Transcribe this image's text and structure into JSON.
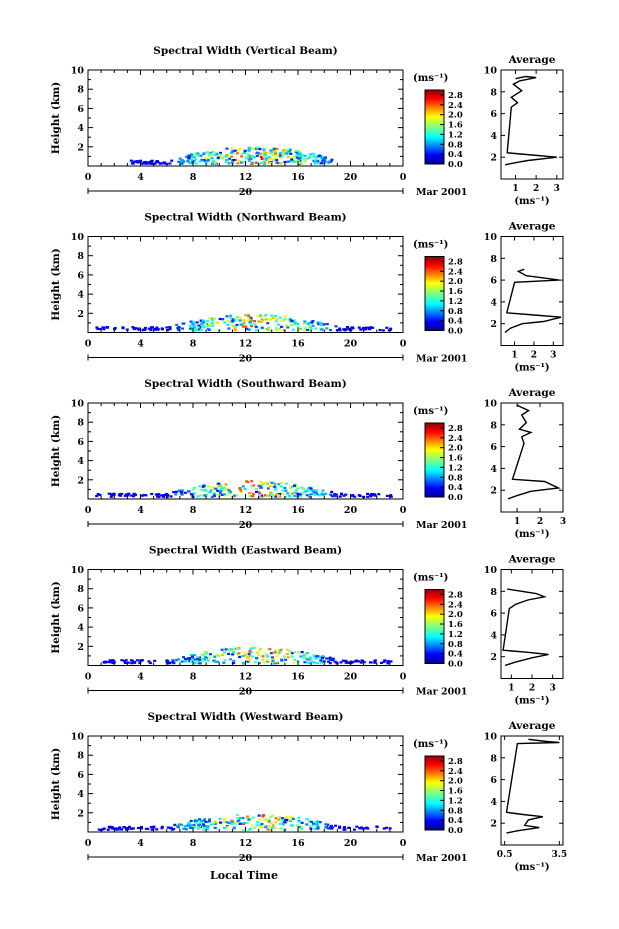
{
  "figure": {
    "y_axis_label": "Height (km)",
    "x_axis_title": "Local Time",
    "date_label": "Mar 2001",
    "day_label": "20",
    "colorbar_unit": "(ms⁻¹)",
    "average_title": "Average",
    "average_unit": "(ms⁻¹)"
  },
  "chart_data": [
    {
      "type": "heatmap",
      "title": "Spectral Width (Vertical Beam)",
      "x_ticks": [
        "0",
        "4",
        "8",
        "12",
        "16",
        "20",
        "0"
      ],
      "y_ticks": [
        "2",
        "4",
        "6",
        "8",
        "10"
      ],
      "xlim": [
        0,
        24
      ],
      "ylim": [
        0,
        10
      ],
      "colorbar": {
        "min": 0.0,
        "max": 3.0,
        "tick_labels": [
          "0.0",
          "0.4",
          "0.8",
          "1.2",
          "1.6",
          "2.0",
          "2.4",
          "2.8"
        ]
      },
      "echo_region": {
        "x_start": 3.0,
        "x_end": 18.5,
        "peak_height_km": 1.4,
        "peak_value": 2.6
      },
      "average": {
        "x_ticks": [
          "1",
          "2",
          "3"
        ],
        "xlim": [
          0.3,
          3.3
        ],
        "y_ticks": [
          "2",
          "4",
          "6",
          "8",
          "10"
        ],
        "profile": [
          [
            1.0,
            9.2
          ],
          [
            1.5,
            9.4
          ],
          [
            2.0,
            9.3
          ],
          [
            1.2,
            9.0
          ],
          [
            0.9,
            8.7
          ],
          [
            1.3,
            8.1
          ],
          [
            0.8,
            7.5
          ],
          [
            1.1,
            7.0
          ],
          [
            0.8,
            6.6
          ],
          [
            0.6,
            2.4
          ],
          [
            1.8,
            2.2
          ],
          [
            3.0,
            2.0
          ],
          [
            1.6,
            1.7
          ],
          [
            1.0,
            1.5
          ],
          [
            0.5,
            1.3
          ]
        ]
      }
    },
    {
      "type": "heatmap",
      "title": "Spectral Width (Northward Beam)",
      "x_ticks": [
        "0",
        "4",
        "8",
        "12",
        "16",
        "20",
        "0"
      ],
      "y_ticks": [
        "2",
        "4",
        "6",
        "8",
        "10"
      ],
      "xlim": [
        0,
        24
      ],
      "ylim": [
        0,
        10
      ],
      "colorbar": {
        "min": 0.0,
        "max": 3.0,
        "tick_labels": [
          "0.0",
          "0.4",
          "0.8",
          "1.2",
          "1.6",
          "2.0",
          "2.4",
          "2.8"
        ]
      },
      "echo_region": {
        "x_start": 0.5,
        "x_end": 23.0,
        "peak_height_km": 1.3,
        "peak_value": 2.5
      },
      "average": {
        "x_ticks": [
          "1",
          "2",
          "3"
        ],
        "xlim": [
          0.3,
          3.5
        ],
        "y_ticks": [
          "2",
          "4",
          "6",
          "8",
          "10"
        ],
        "profile": [
          [
            1.5,
            7.0
          ],
          [
            1.2,
            6.8
          ],
          [
            1.6,
            6.4
          ],
          [
            2.5,
            6.2
          ],
          [
            3.3,
            6.0
          ],
          [
            1.0,
            5.8
          ],
          [
            0.6,
            3.0
          ],
          [
            2.0,
            2.8
          ],
          [
            3.4,
            2.6
          ],
          [
            2.5,
            2.2
          ],
          [
            1.4,
            2.0
          ],
          [
            0.8,
            1.6
          ],
          [
            0.5,
            1.2
          ]
        ]
      }
    },
    {
      "type": "heatmap",
      "title": "Spectral Width (Southward Beam)",
      "x_ticks": [
        "0",
        "4",
        "8",
        "12",
        "16",
        "20",
        "0"
      ],
      "y_ticks": [
        "2",
        "4",
        "6",
        "8",
        "10"
      ],
      "xlim": [
        0,
        24
      ],
      "ylim": [
        0,
        10
      ],
      "colorbar": {
        "min": 0.0,
        "max": 3.0,
        "tick_labels": [
          "0.0",
          "0.4",
          "0.8",
          "1.2",
          "1.6",
          "2.0",
          "2.4",
          "2.8"
        ]
      },
      "echo_region": {
        "x_start": 0.5,
        "x_end": 23.0,
        "peak_height_km": 1.3,
        "peak_value": 2.5
      },
      "average": {
        "x_ticks": [
          "1",
          "2",
          "3"
        ],
        "xlim": [
          0.3,
          3.0
        ],
        "y_ticks": [
          "2",
          "4",
          "6",
          "8",
          "10"
        ],
        "profile": [
          [
            1.0,
            9.8
          ],
          [
            1.5,
            9.3
          ],
          [
            1.2,
            8.9
          ],
          [
            1.4,
            8.2
          ],
          [
            1.1,
            7.6
          ],
          [
            1.6,
            7.3
          ],
          [
            1.2,
            6.9
          ],
          [
            1.3,
            6.3
          ],
          [
            0.8,
            3.0
          ],
          [
            2.2,
            2.8
          ],
          [
            2.8,
            2.2
          ],
          [
            1.6,
            1.9
          ],
          [
            1.0,
            1.5
          ],
          [
            0.6,
            1.2
          ]
        ]
      }
    },
    {
      "type": "heatmap",
      "title": "Spectral Width (Eastward Beam)",
      "x_ticks": [
        "0",
        "4",
        "8",
        "12",
        "16",
        "20",
        "0"
      ],
      "y_ticks": [
        "2",
        "4",
        "6",
        "8",
        "10"
      ],
      "xlim": [
        0,
        24
      ],
      "ylim": [
        0,
        10
      ],
      "colorbar": {
        "min": 0.0,
        "max": 3.0,
        "tick_labels": [
          "0.0",
          "0.4",
          "0.8",
          "1.2",
          "1.6",
          "2.0",
          "2.4",
          "2.8"
        ]
      },
      "echo_region": {
        "x_start": 1.0,
        "x_end": 23.0,
        "peak_height_km": 1.3,
        "peak_value": 2.5
      },
      "average": {
        "x_ticks": [
          "1",
          "2",
          "3"
        ],
        "xlim": [
          0.5,
          3.5
        ],
        "y_ticks": [
          "2",
          "4",
          "6",
          "8",
          "10"
        ],
        "profile": [
          [
            0.8,
            8.2
          ],
          [
            1.5,
            8.0
          ],
          [
            2.2,
            7.8
          ],
          [
            2.6,
            7.5
          ],
          [
            1.8,
            7.2
          ],
          [
            1.2,
            6.8
          ],
          [
            0.9,
            6.4
          ],
          [
            0.6,
            2.6
          ],
          [
            1.8,
            2.4
          ],
          [
            2.8,
            2.2
          ],
          [
            2.0,
            1.9
          ],
          [
            1.2,
            1.5
          ],
          [
            0.7,
            1.2
          ]
        ]
      }
    },
    {
      "type": "heatmap",
      "title": "Spectral Width (Westward Beam)",
      "x_ticks": [
        "0",
        "4",
        "8",
        "12",
        "16",
        "20",
        "0"
      ],
      "y_ticks": [
        "2",
        "4",
        "6",
        "8",
        "10"
      ],
      "xlim": [
        0,
        24
      ],
      "ylim": [
        0,
        10
      ],
      "colorbar": {
        "min": 0.0,
        "max": 3.0,
        "tick_labels": [
          "0.0",
          "0.4",
          "0.8",
          "1.2",
          "1.6",
          "2.0",
          "2.4",
          "2.8"
        ]
      },
      "echo_region": {
        "x_start": 0.5,
        "x_end": 23.0,
        "peak_height_km": 1.3,
        "peak_value": 2.5
      },
      "average": {
        "x_ticks": [
          "0.5",
          "3.5"
        ],
        "xlim": [
          0.3,
          3.7
        ],
        "y_ticks": [
          "2",
          "4",
          "6",
          "8",
          "10"
        ],
        "profile": [
          [
            1.8,
            9.7
          ],
          [
            2.8,
            9.5
          ],
          [
            3.5,
            9.4
          ],
          [
            1.2,
            9.3
          ],
          [
            0.6,
            3.0
          ],
          [
            1.5,
            2.8
          ],
          [
            2.6,
            2.6
          ],
          [
            1.8,
            2.3
          ],
          [
            1.6,
            1.8
          ],
          [
            2.4,
            1.6
          ],
          [
            1.2,
            1.3
          ],
          [
            0.6,
            1.1
          ]
        ]
      }
    }
  ]
}
